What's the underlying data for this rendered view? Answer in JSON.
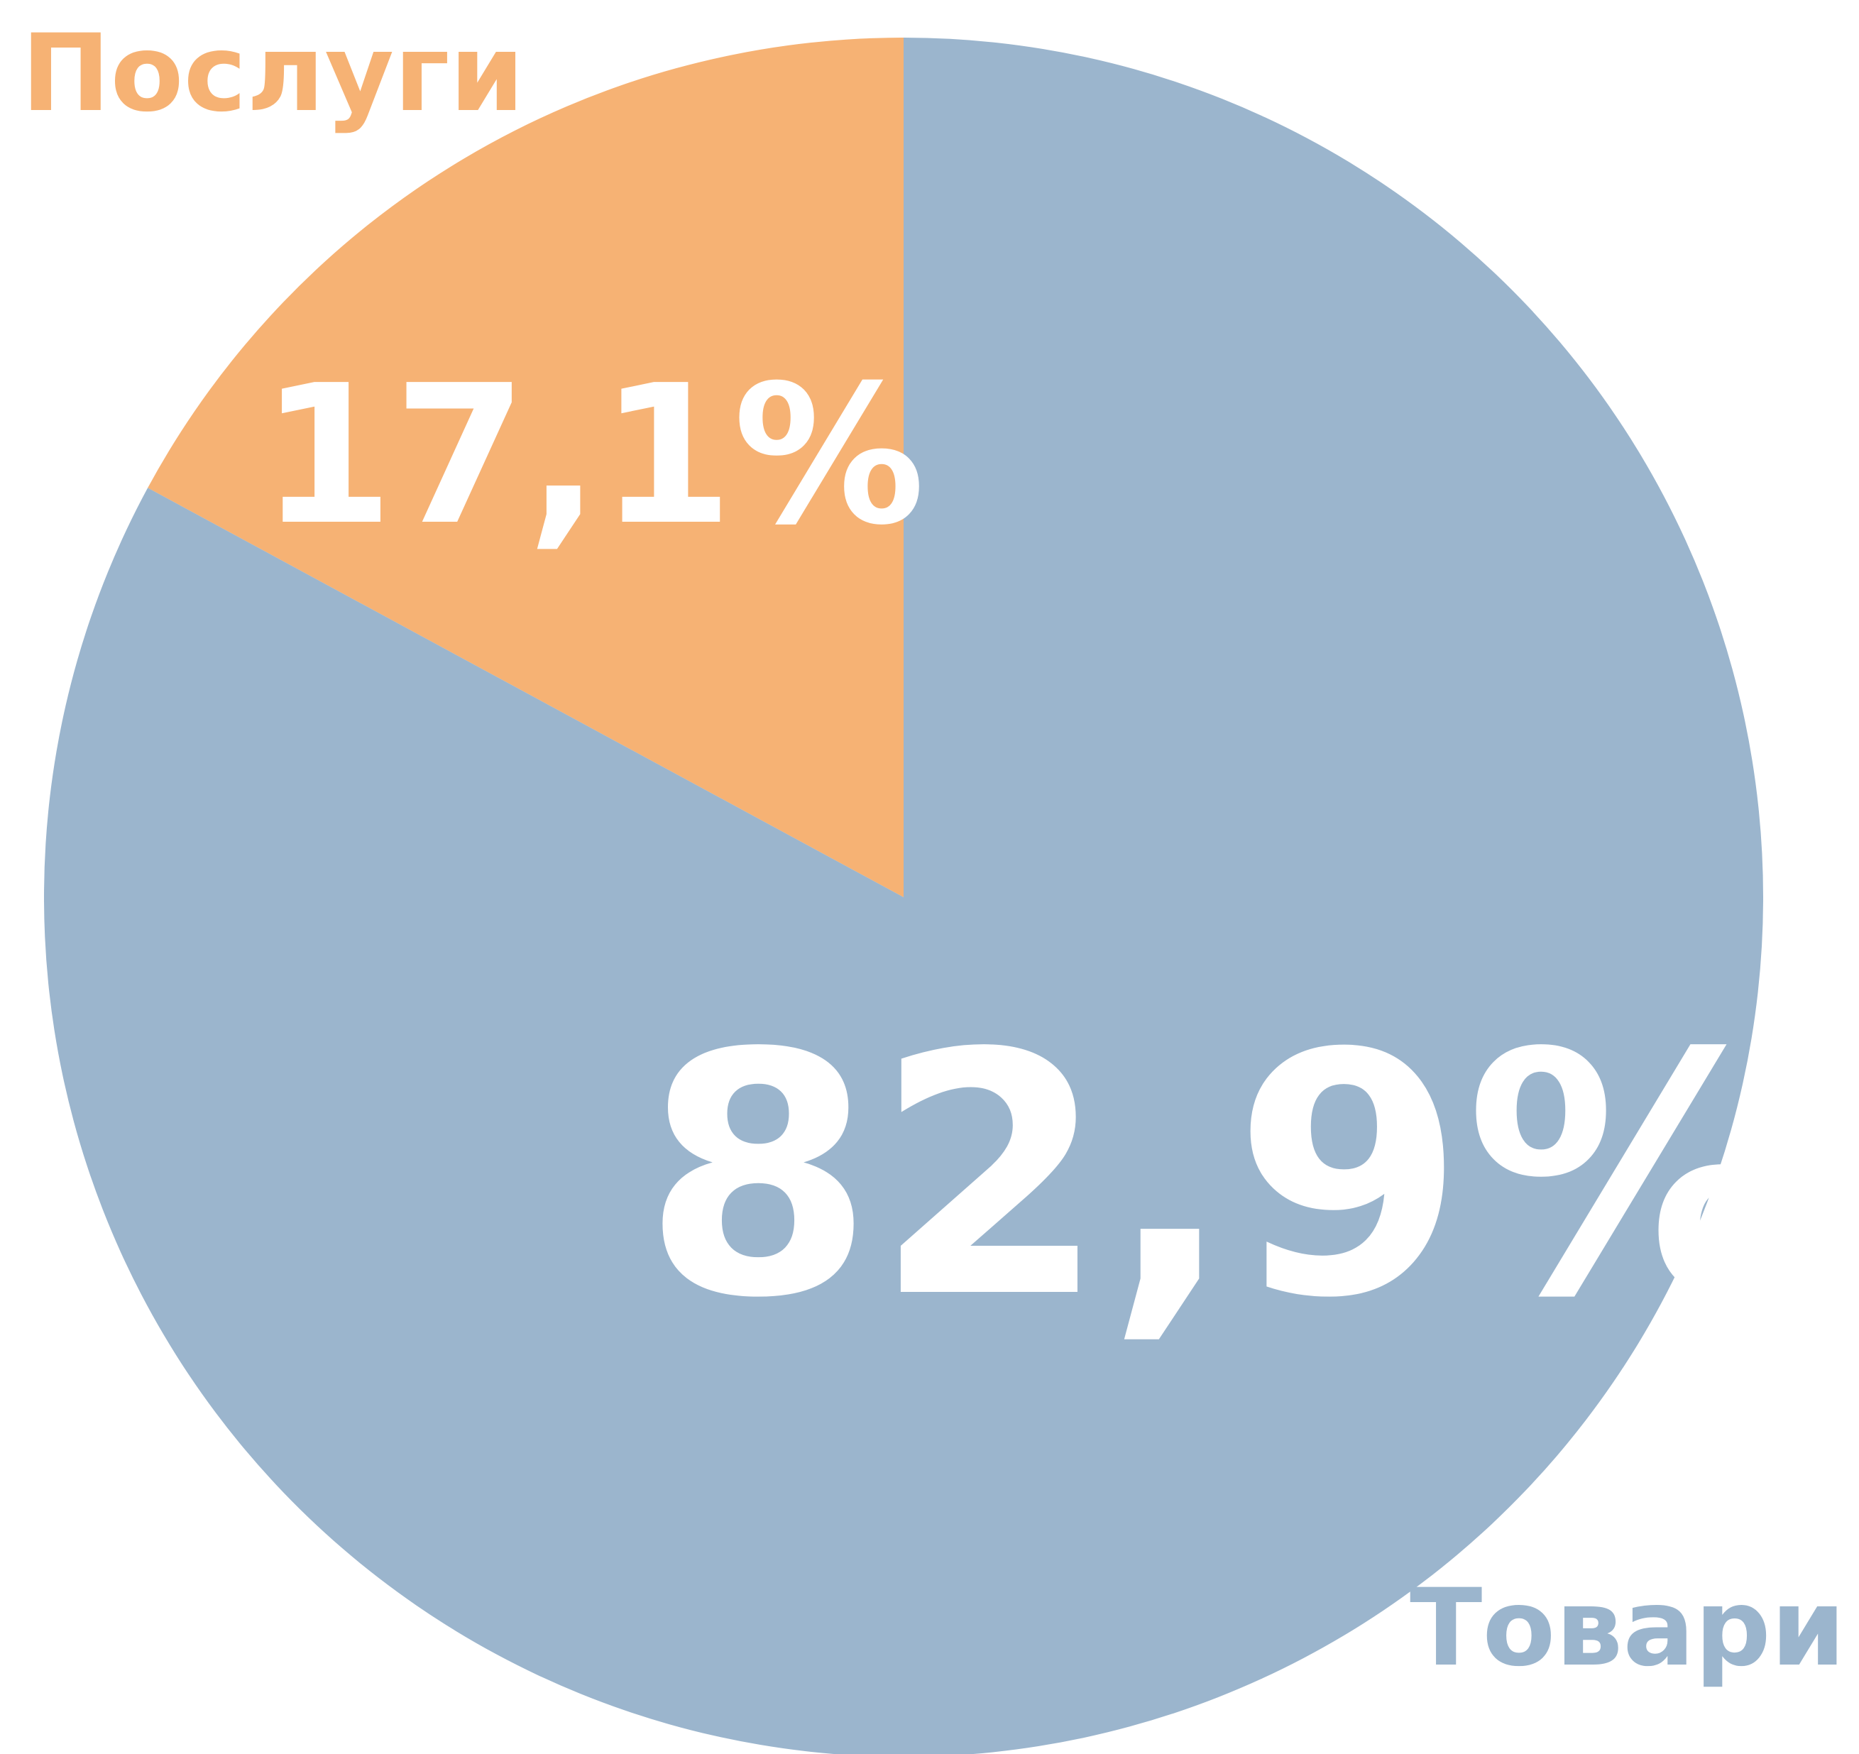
{
  "chart_data": {
    "type": "pie",
    "categories": [
      "Послуги",
      "Товари"
    ],
    "values": [
      17.1,
      82.9
    ],
    "value_labels": [
      "17,1%",
      "82,9%"
    ],
    "colors": [
      "#f6b274",
      "#9bb5cd"
    ]
  }
}
